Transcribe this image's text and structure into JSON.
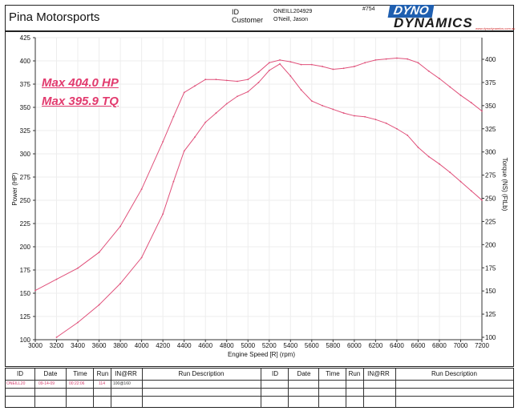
{
  "header": {
    "company": "Pina Motorsports",
    "id_label": "ID",
    "customer_label": "Customer",
    "id_value": "ONEILL204929",
    "customer_value": "O'Neill, Jason",
    "serial": "#754"
  },
  "logo": {
    "line1": "DYNO",
    "line2": "DYNAMICS",
    "small": "www.dynodynamics.com.au"
  },
  "annotations": {
    "max_hp": "Max 404.0 HP",
    "max_tq": "Max 395.9 TQ"
  },
  "chart_data": {
    "type": "line",
    "xlabel": "Engine Speed [R] (rpm)",
    "ylabel": "Power (HP)",
    "y2label": "Torque (NS) (FtLb)",
    "xlim": [
      3000,
      7200
    ],
    "ylim": [
      100,
      425
    ],
    "y2lim": [
      100,
      400
    ],
    "x_ticks": [
      3000,
      3200,
      3400,
      3600,
      3800,
      4000,
      4200,
      4400,
      4600,
      4800,
      5000,
      5200,
      5400,
      5600,
      5800,
      6000,
      6200,
      6400,
      6600,
      6800,
      7000,
      7200
    ],
    "y_ticks": [
      100,
      125,
      150,
      175,
      200,
      225,
      250,
      275,
      300,
      325,
      350,
      375,
      400,
      425
    ],
    "y2_ticks": [
      100,
      125,
      150,
      175,
      200,
      225,
      250,
      275,
      300,
      325,
      350,
      375,
      400
    ],
    "grid": true,
    "series": [
      {
        "axis": "left",
        "color": "#e0507a",
        "x": [
          3000,
          3200,
          3400,
          3600,
          3800,
          4000,
          4200,
          4300,
          4400,
          4500,
          4600,
          4700,
          4800,
          4900,
          5000,
          5100,
          5200,
          5300,
          5400,
          5500,
          5600,
          5700,
          5800,
          5900,
          6000,
          6100,
          6200,
          6300,
          6400,
          6500,
          6600,
          6700,
          6800,
          6900,
          7000,
          7100,
          7200
        ],
        "values": [
          153,
          165,
          177,
          194,
          222,
          262,
          313,
          340,
          366,
          373,
          380,
          380,
          379,
          378,
          380,
          388,
          398,
          401,
          399,
          396,
          396,
          394,
          391,
          392,
          394,
          398,
          401,
          402,
          403,
          402,
          398,
          389,
          381,
          372,
          363,
          355,
          346
        ]
      },
      {
        "axis": "right",
        "color": "#e0507a",
        "x": [
          3200,
          3400,
          3600,
          3800,
          4000,
          4200,
          4300,
          4400,
          4500,
          4600,
          4700,
          4800,
          4900,
          5000,
          5100,
          5200,
          5300,
          5400,
          5500,
          5600,
          5700,
          5800,
          5900,
          6000,
          6100,
          6200,
          6300,
          6400,
          6500,
          6600,
          6700,
          6800,
          6900,
          7000,
          7100,
          7200
        ],
        "values": [
          100,
          116,
          135,
          158,
          186,
          233,
          268,
          301,
          316,
          332,
          342,
          352,
          360,
          365,
          375,
          388,
          395,
          382,
          367,
          355,
          350,
          346,
          342,
          339,
          338,
          335,
          331,
          325,
          318,
          305,
          295,
          287,
          278,
          268,
          258,
          248
        ]
      }
    ]
  },
  "footer": {
    "headers": [
      "ID",
      "Date",
      "Time",
      "Run",
      "IN@RR",
      "Run Description",
      "ID",
      "Date",
      "Time",
      "Run",
      "IN@RR",
      "Run Description"
    ],
    "row": {
      "id": "ONEILL20",
      "date": "09-14-09",
      "time": "00:22:06",
      "run": "114",
      "inrr": "100@160"
    }
  }
}
